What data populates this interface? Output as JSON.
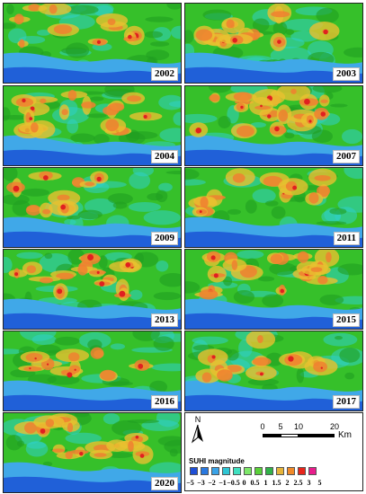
{
  "panels": [
    {
      "year": "2002"
    },
    {
      "year": "2003"
    },
    {
      "year": "2004"
    },
    {
      "year": "2007"
    },
    {
      "year": "2009"
    },
    {
      "year": "2011"
    },
    {
      "year": "2013"
    },
    {
      "year": "2015"
    },
    {
      "year": "2016"
    },
    {
      "year": "2017"
    },
    {
      "year": "2020"
    }
  ],
  "legend": {
    "north_label": "N",
    "scale_labels": [
      "0",
      "5",
      "10",
      "20"
    ],
    "scale_unit": "Km",
    "title": "SUHI magnitude",
    "tick_labels": [
      "−5",
      "−3",
      "−2",
      "−1",
      "−0.5",
      "0",
      "0.5",
      "1",
      "1.5",
      "2",
      "2.5",
      "3",
      "5"
    ],
    "colors": [
      "#1f4fd6",
      "#2a79e0",
      "#3aa3e8",
      "#2fc6d4",
      "#3fe0c0",
      "#7ee86a",
      "#5ad13a",
      "#32b24a",
      "#e6b43a",
      "#f08a2a",
      "#e8261c",
      "#e81e8c"
    ]
  },
  "map_colors": {
    "water_dark": "#2060d8",
    "water_light": "#40a8e8",
    "cool": "#30d0c8",
    "green": "#36c02a",
    "green_dark": "#1f9e22",
    "yellow": "#e8c030",
    "orange": "#f08030",
    "red": "#e02020"
  }
}
